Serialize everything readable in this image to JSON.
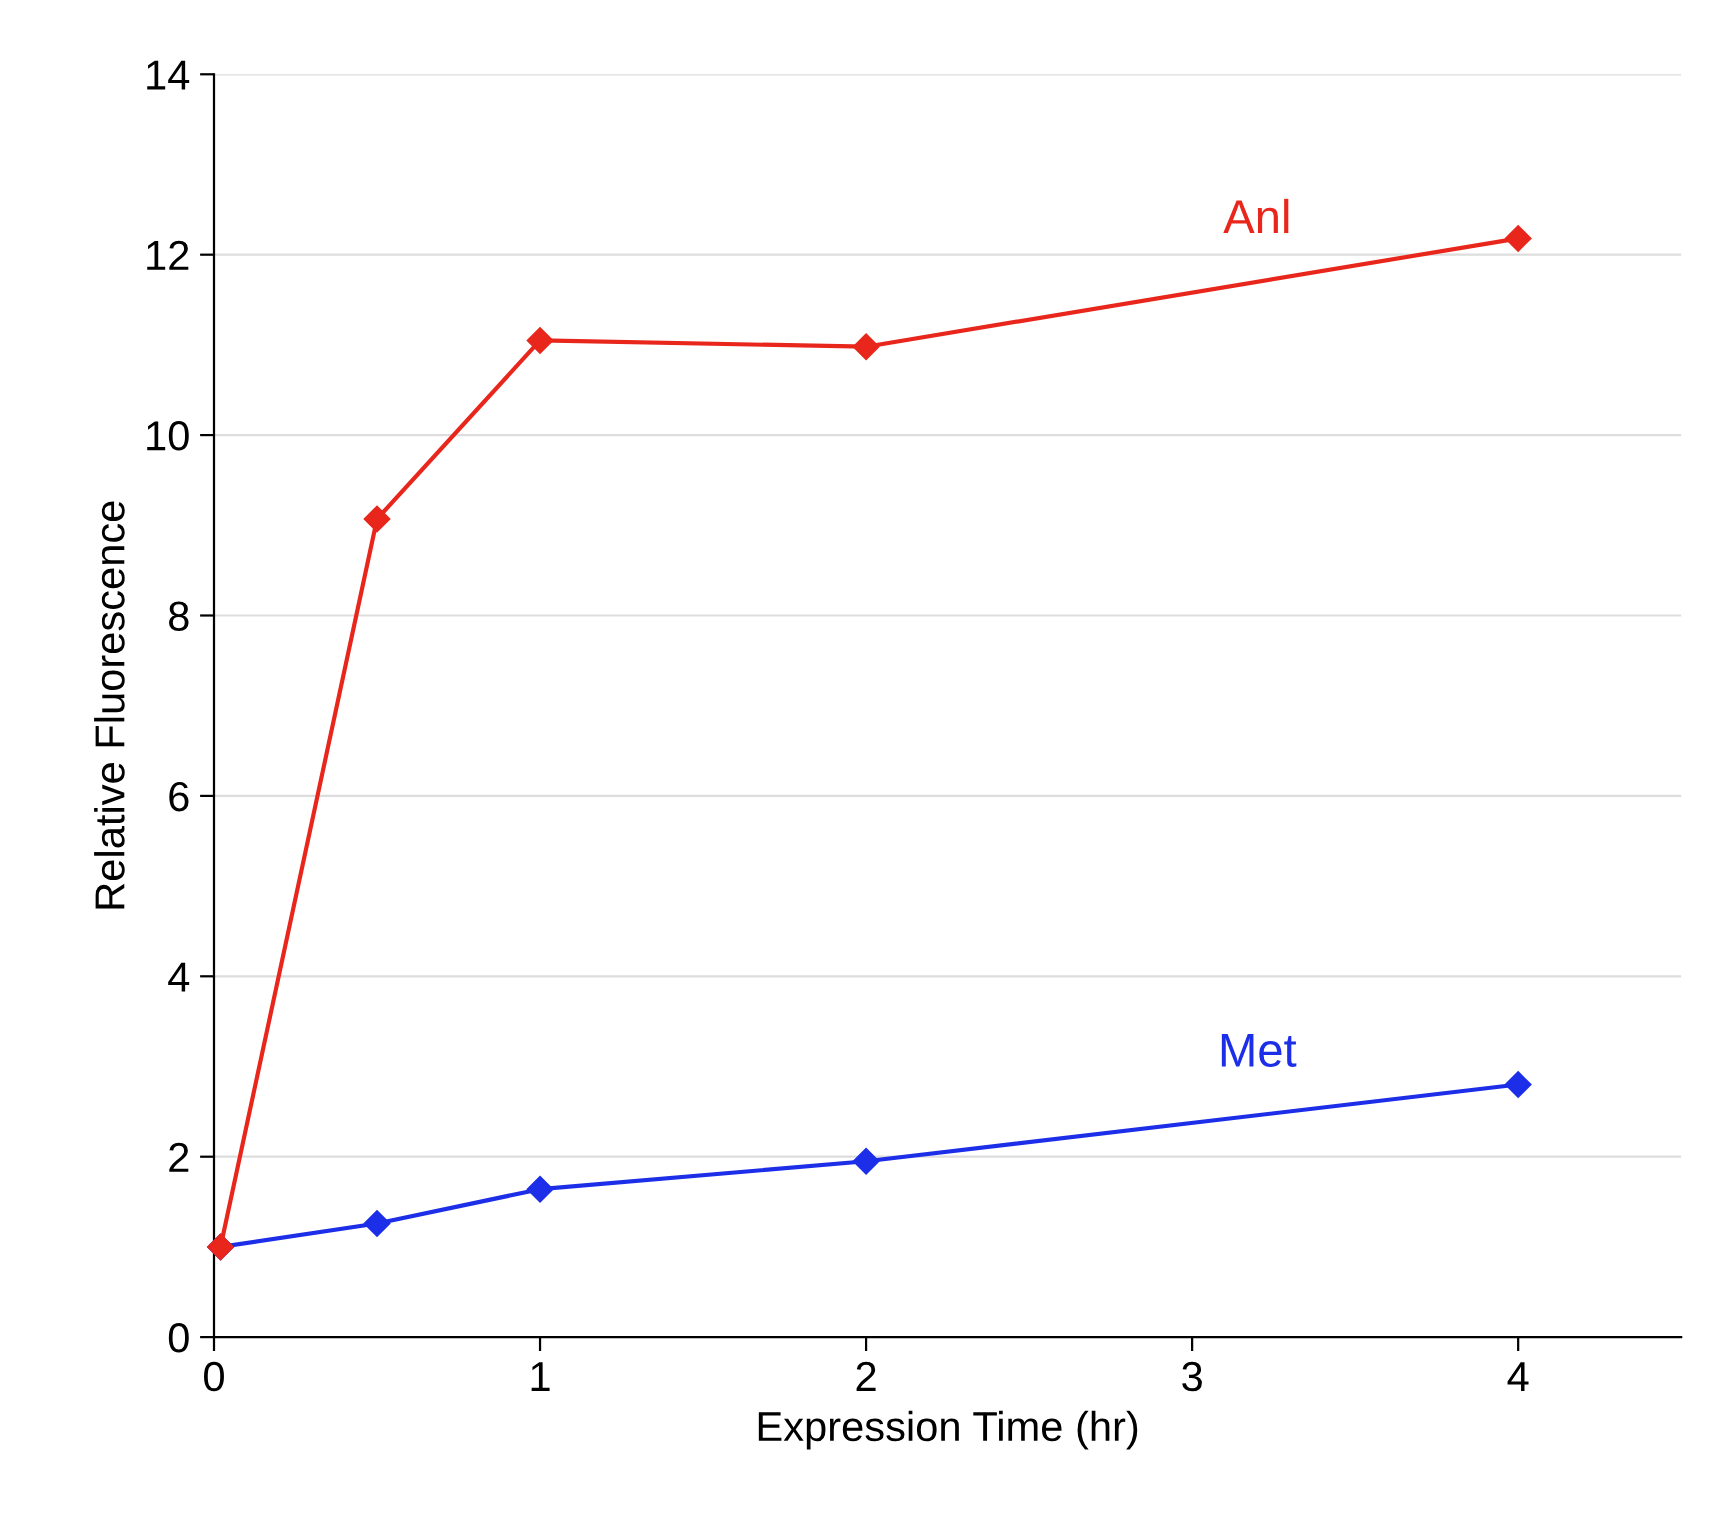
{
  "chart_data": {
    "type": "line",
    "xlabel": "Expression Time (hr)",
    "ylabel": "Relative Fluorescence",
    "series": [
      {
        "name": "Anl",
        "color": "#e8261c",
        "x": [
          0.02,
          0.5,
          1,
          2,
          4
        ],
        "values": [
          1.0,
          9.07,
          11.05,
          10.98,
          12.18
        ]
      },
      {
        "name": "Met",
        "color": "#1c2ee8",
        "x": [
          0.02,
          0.5,
          1,
          2,
          4
        ],
        "values": [
          1.0,
          1.26,
          1.64,
          1.95,
          2.8
        ]
      }
    ],
    "xlim": [
      0,
      4.5
    ],
    "xticks": [
      0,
      1,
      2,
      3,
      4
    ],
    "ylim": [
      0,
      14
    ],
    "yticks": [
      0,
      2,
      4,
      6,
      8,
      10,
      12,
      14
    ],
    "grid": "y",
    "legend": false,
    "marker": "diamond",
    "line_style": "solid"
  }
}
